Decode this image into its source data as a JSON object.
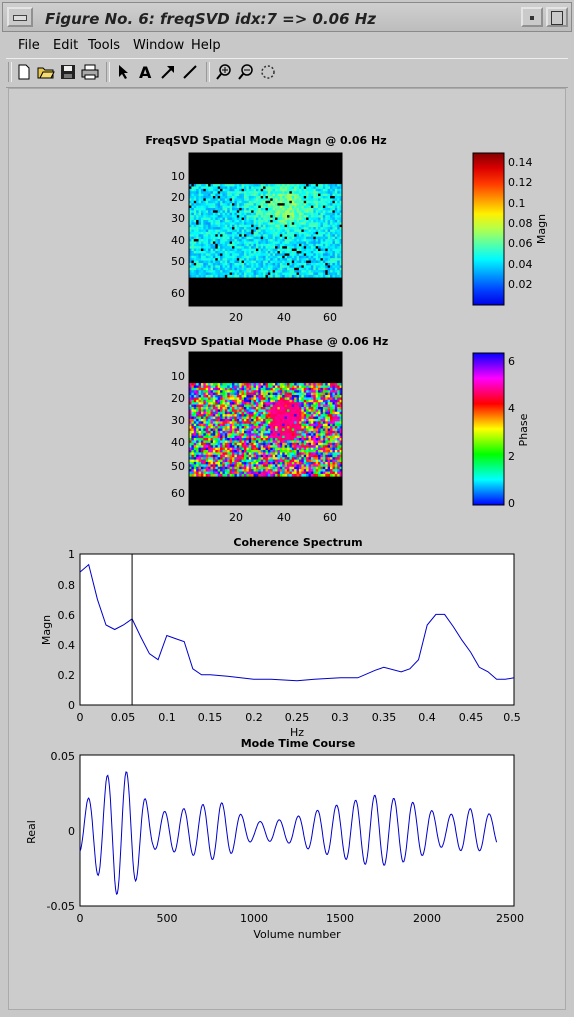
{
  "window": {
    "title": "Figure No. 6: freqSVD idx:7 => 0.06 Hz"
  },
  "menu": [
    "File",
    "Edit",
    "Tools",
    "Window",
    "Help"
  ],
  "toolbar": [
    "new-document-icon",
    "open-folder-icon",
    "save-icon",
    "print-icon",
    "select-arrow-icon",
    "insert-text-icon",
    "insert-arrow-icon",
    "insert-line-icon",
    "zoom-in-icon",
    "zoom-out-icon",
    "rotate-icon"
  ],
  "plots": {
    "magn_map": {
      "title": "FreqSVD Spatial Mode Magn @ 0.06 Hz",
      "yticks": [
        "10",
        "20",
        "30",
        "40",
        "50",
        "60"
      ],
      "xticks": [
        "20",
        "40",
        "60"
      ],
      "colorbar_label": "Magn",
      "colorbar_ticks": [
        "0.14",
        "0.12",
        "0.1",
        "0.08",
        "0.06",
        "0.04",
        "0.02"
      ]
    },
    "phase_map": {
      "title": "FreqSVD Spatial Mode Phase @ 0.06 Hz",
      "yticks": [
        "10",
        "20",
        "30",
        "40",
        "50",
        "60"
      ],
      "xticks": [
        "20",
        "40",
        "60"
      ],
      "colorbar_label": "Phase",
      "colorbar_ticks": [
        "6",
        "4",
        "2",
        "0"
      ]
    },
    "coherence": {
      "title": "Coherence Spectrum",
      "xlabel": "Hz",
      "ylabel": "Magn",
      "xticks": [
        "0",
        "0.05",
        "0.1",
        "0.15",
        "0.2",
        "0.25",
        "0.3",
        "0.35",
        "0.4",
        "0.45",
        "0.5"
      ],
      "yticks": [
        "1",
        "0.8",
        "0.6",
        "0.4",
        "0.2",
        "0"
      ]
    },
    "timecourse": {
      "title": "Mode Time Course",
      "xlabel": "Volume number",
      "ylabel": "Real",
      "xticks": [
        "0",
        "500",
        "1000",
        "1500",
        "2000",
        "2500"
      ],
      "yticks": [
        "0.05",
        "0",
        "-0.05"
      ]
    }
  },
  "chart_data": [
    {
      "type": "heatmap",
      "title": "FreqSVD Spatial Mode Magn @ 0.06 Hz",
      "xlim": [
        1,
        64
      ],
      "ylim": [
        64,
        1
      ],
      "colorbar": {
        "label": "Magn",
        "range": [
          0,
          0.15
        ]
      },
      "data_rows": [
        13,
        52
      ],
      "note_values": "mostly 0.02-0.06 with hotspot ~0.10 near x=40,y=20"
    },
    {
      "type": "heatmap",
      "title": "FreqSVD Spatial Mode Phase @ 0.06 Hz",
      "xlim": [
        1,
        64
      ],
      "ylim": [
        64,
        1
      ],
      "colorbar": {
        "label": "Phase",
        "range": [
          0,
          6.28
        ]
      }
    },
    {
      "type": "line",
      "title": "Coherence Spectrum",
      "xlabel": "Hz",
      "ylabel": "Magn",
      "xlim": [
        0,
        0.5
      ],
      "ylim": [
        0,
        1
      ],
      "x": [
        0,
        0.01,
        0.02,
        0.03,
        0.04,
        0.05,
        0.06,
        0.07,
        0.08,
        0.09,
        0.1,
        0.11,
        0.12,
        0.13,
        0.14,
        0.15,
        0.17,
        0.2,
        0.22,
        0.25,
        0.27,
        0.3,
        0.32,
        0.34,
        0.35,
        0.37,
        0.38,
        0.39,
        0.4,
        0.41,
        0.42,
        0.43,
        0.44,
        0.45,
        0.46,
        0.47,
        0.48,
        0.49,
        0.5
      ],
      "y": [
        0.88,
        0.93,
        0.7,
        0.53,
        0.5,
        0.53,
        0.57,
        0.45,
        0.34,
        0.3,
        0.46,
        0.44,
        0.42,
        0.24,
        0.2,
        0.2,
        0.19,
        0.17,
        0.17,
        0.16,
        0.17,
        0.18,
        0.18,
        0.23,
        0.25,
        0.22,
        0.24,
        0.3,
        0.53,
        0.6,
        0.6,
        0.52,
        0.43,
        0.35,
        0.25,
        0.22,
        0.17,
        0.17,
        0.18
      ],
      "marker_line_x": 0.06
    },
    {
      "type": "line",
      "title": "Mode Time Course",
      "xlabel": "Volume number",
      "ylabel": "Real",
      "xlim": [
        0,
        2500
      ],
      "ylim": [
        -0.05,
        0.05
      ],
      "x_range": [
        0,
        2400
      ],
      "period": 110,
      "envelope": [
        [
          0,
          0.015
        ],
        [
          70,
          0.025
        ],
        [
          200,
          0.043
        ],
        [
          300,
          0.038
        ],
        [
          420,
          0.012
        ],
        [
          600,
          0.015
        ],
        [
          800,
          0.02
        ],
        [
          1000,
          0.006
        ],
        [
          1200,
          0.008
        ],
        [
          1400,
          0.015
        ],
        [
          1500,
          0.018
        ],
        [
          1700,
          0.024
        ],
        [
          1900,
          0.02
        ],
        [
          2100,
          0.01
        ],
        [
          2250,
          0.015
        ],
        [
          2400,
          0.01
        ]
      ]
    }
  ]
}
